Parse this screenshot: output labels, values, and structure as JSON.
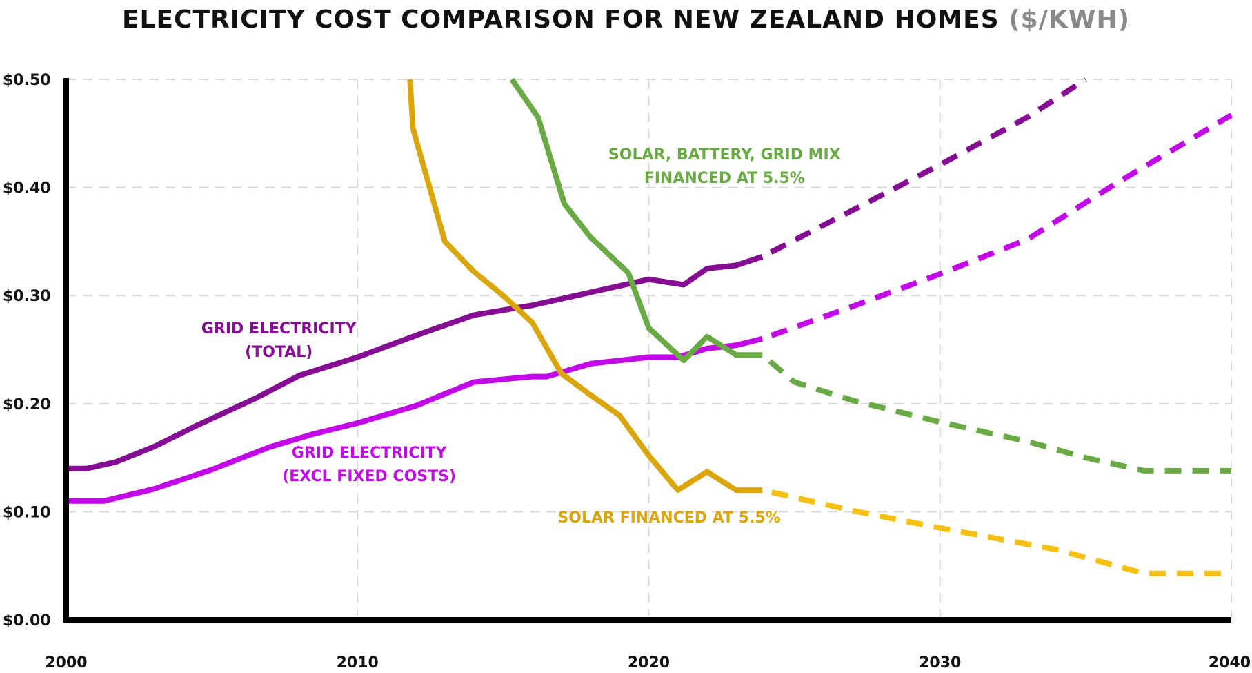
{
  "chart_data": {
    "type": "line",
    "title": "Electricity Cost Comparison for New Zealand Homes",
    "title_unit": "($/kWh)",
    "xlabel": "",
    "ylabel": "",
    "xlim": [
      2000,
      2040
    ],
    "ylim": [
      0,
      0.5
    ],
    "x_ticks": [
      {
        "value": 2000,
        "label": "2000"
      },
      {
        "value": 2010,
        "label": "2010"
      },
      {
        "value": 2020,
        "label": "2020"
      },
      {
        "value": 2030,
        "label": "2030"
      },
      {
        "value": 2040,
        "label": "2040"
      }
    ],
    "y_ticks": [
      {
        "value": 0.0,
        "label": "$0.00"
      },
      {
        "value": 0.1,
        "label": "$0.10"
      },
      {
        "value": 0.2,
        "label": "$0.20"
      },
      {
        "value": 0.3,
        "label": "$0.30"
      },
      {
        "value": 0.4,
        "label": "$0.40"
      },
      {
        "value": 0.5,
        "label": "$0.50"
      }
    ],
    "grid": true,
    "series": [
      {
        "name": "Grid Electricity (Total)",
        "label_lines": [
          "Grid Electricity",
          "(total)"
        ],
        "label_anchor": {
          "x": 7.3,
          "y": 0.265
        },
        "color": "#850d94",
        "actual": [
          [
            2000,
            0.14
          ],
          [
            2000.7,
            0.14
          ],
          [
            2001.7,
            0.146
          ],
          [
            2003,
            0.16
          ],
          [
            2004.5,
            0.18
          ],
          [
            2006.5,
            0.205
          ],
          [
            2008,
            0.226
          ],
          [
            2010,
            0.243
          ],
          [
            2012,
            0.263
          ],
          [
            2014,
            0.282
          ],
          [
            2016,
            0.291
          ],
          [
            2018,
            0.303
          ],
          [
            2020,
            0.315
          ],
          [
            2021.2,
            0.31
          ],
          [
            2022,
            0.325
          ],
          [
            2023,
            0.328
          ],
          [
            2023.9,
            0.336
          ]
        ],
        "projected": [
          [
            2023.9,
            0.336
          ],
          [
            2027,
            0.379
          ],
          [
            2030,
            0.421
          ],
          [
            2033,
            0.465
          ],
          [
            2035,
            0.5
          ]
        ]
      },
      {
        "name": "Grid Electricity (excl fixed costs)",
        "label_lines": [
          "Grid Electricity",
          "(excl fixed costs)"
        ],
        "label_anchor": {
          "x": 10.4,
          "y": 0.15
        },
        "color": "#c208e8",
        "actual": [
          [
            2000,
            0.11
          ],
          [
            2001.3,
            0.11
          ],
          [
            2003,
            0.121
          ],
          [
            2005,
            0.139
          ],
          [
            2007,
            0.16
          ],
          [
            2008.5,
            0.172
          ],
          [
            2010,
            0.182
          ],
          [
            2012,
            0.198
          ],
          [
            2014,
            0.22
          ],
          [
            2016,
            0.225
          ],
          [
            2016.5,
            0.225
          ],
          [
            2018,
            0.237
          ],
          [
            2020,
            0.243
          ],
          [
            2021,
            0.243
          ],
          [
            2022,
            0.251
          ],
          [
            2023,
            0.254
          ],
          [
            2023.9,
            0.26
          ]
        ],
        "projected": [
          [
            2023.9,
            0.26
          ],
          [
            2027,
            0.29
          ],
          [
            2030,
            0.32
          ],
          [
            2033,
            0.352
          ],
          [
            2036,
            0.403
          ],
          [
            2040,
            0.467
          ]
        ]
      },
      {
        "name": "Solar, Battery, Grid Mix Financed at 5.5%",
        "label_lines": [
          "Solar, Battery, Grid Mix",
          "financed at 5.5%"
        ],
        "label_anchor": {
          "x": 22.6,
          "y": 0.426
        },
        "color": "#6aaa45",
        "actual": [
          [
            2015.3,
            0.5
          ],
          [
            2016.2,
            0.465
          ],
          [
            2017.1,
            0.385
          ],
          [
            2018,
            0.354
          ],
          [
            2019.3,
            0.321
          ],
          [
            2020,
            0.27
          ],
          [
            2021.2,
            0.24
          ],
          [
            2022,
            0.262
          ],
          [
            2023,
            0.245
          ],
          [
            2023.9,
            0.245
          ]
        ],
        "projected": [
          [
            2023.9,
            0.245
          ],
          [
            2025,
            0.22
          ],
          [
            2027,
            0.203
          ],
          [
            2030,
            0.183
          ],
          [
            2033,
            0.165
          ],
          [
            2035,
            0.15
          ],
          [
            2037,
            0.138
          ],
          [
            2040,
            0.138
          ]
        ]
      },
      {
        "name": "Solar Financed at 5.5%",
        "label_lines": [
          "Solar financed at 5.5%"
        ],
        "label_anchor": {
          "x": 20.7,
          "y": 0.09
        },
        "color": "#d9a60e",
        "projected_color": "#f6c010",
        "actual": [
          [
            2011.8,
            0.5
          ],
          [
            2011.9,
            0.455
          ],
          [
            2013,
            0.35
          ],
          [
            2014,
            0.322
          ],
          [
            2015,
            0.3
          ],
          [
            2016,
            0.275
          ],
          [
            2017,
            0.228
          ],
          [
            2018,
            0.208
          ],
          [
            2019,
            0.189
          ],
          [
            2020,
            0.152
          ],
          [
            2021,
            0.12
          ],
          [
            2022,
            0.137
          ],
          [
            2023,
            0.12
          ],
          [
            2023.9,
            0.12
          ]
        ],
        "projected": [
          [
            2023.9,
            0.12
          ],
          [
            2027,
            0.101
          ],
          [
            2030,
            0.085
          ],
          [
            2034,
            0.065
          ],
          [
            2037,
            0.043
          ],
          [
            2040,
            0.043
          ]
        ]
      }
    ]
  }
}
